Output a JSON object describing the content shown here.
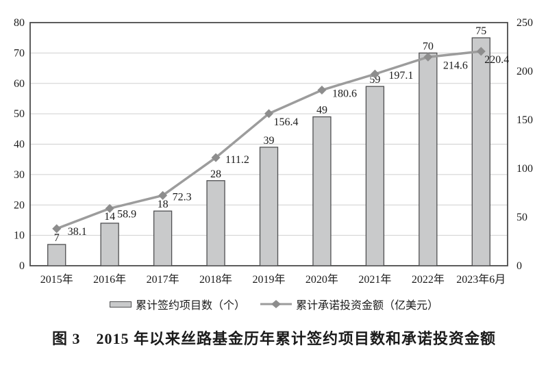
{
  "chart_data": {
    "type": "combo-bar-line",
    "categories": [
      "2015年",
      "2016年",
      "2017年",
      "2018年",
      "2019年",
      "2020年",
      "2021年",
      "2022年",
      "2023年6月"
    ],
    "series": [
      {
        "name": "累计签约项目数（个）",
        "type": "bar",
        "axis": "left",
        "values": [
          7,
          14,
          18,
          28,
          39,
          49,
          59,
          70,
          75
        ]
      },
      {
        "name": "累计承诺投资金额（亿美元）",
        "type": "line",
        "axis": "right",
        "values": [
          38.1,
          58.9,
          72.3,
          111.2,
          156.4,
          180.6,
          197.1,
          214.6,
          220.4
        ]
      }
    ],
    "left_axis": {
      "min": 0,
      "max": 80,
      "step": 10
    },
    "right_axis": {
      "min": 0,
      "max": 250,
      "step": 50
    },
    "grid": true,
    "legend_position": "bottom",
    "title": "图 3　2015 年以来丝路基金历年累计签约项目数和承诺投资金额",
    "colors": {
      "bar_fill": "#c9cacb",
      "bar_border": "#4f4f51",
      "line": "#9c9c9c",
      "marker": "#8d8d8d",
      "grid": "#cfcfcf",
      "axis": "#4a4a4a",
      "text": "#1b1b1b"
    }
  }
}
